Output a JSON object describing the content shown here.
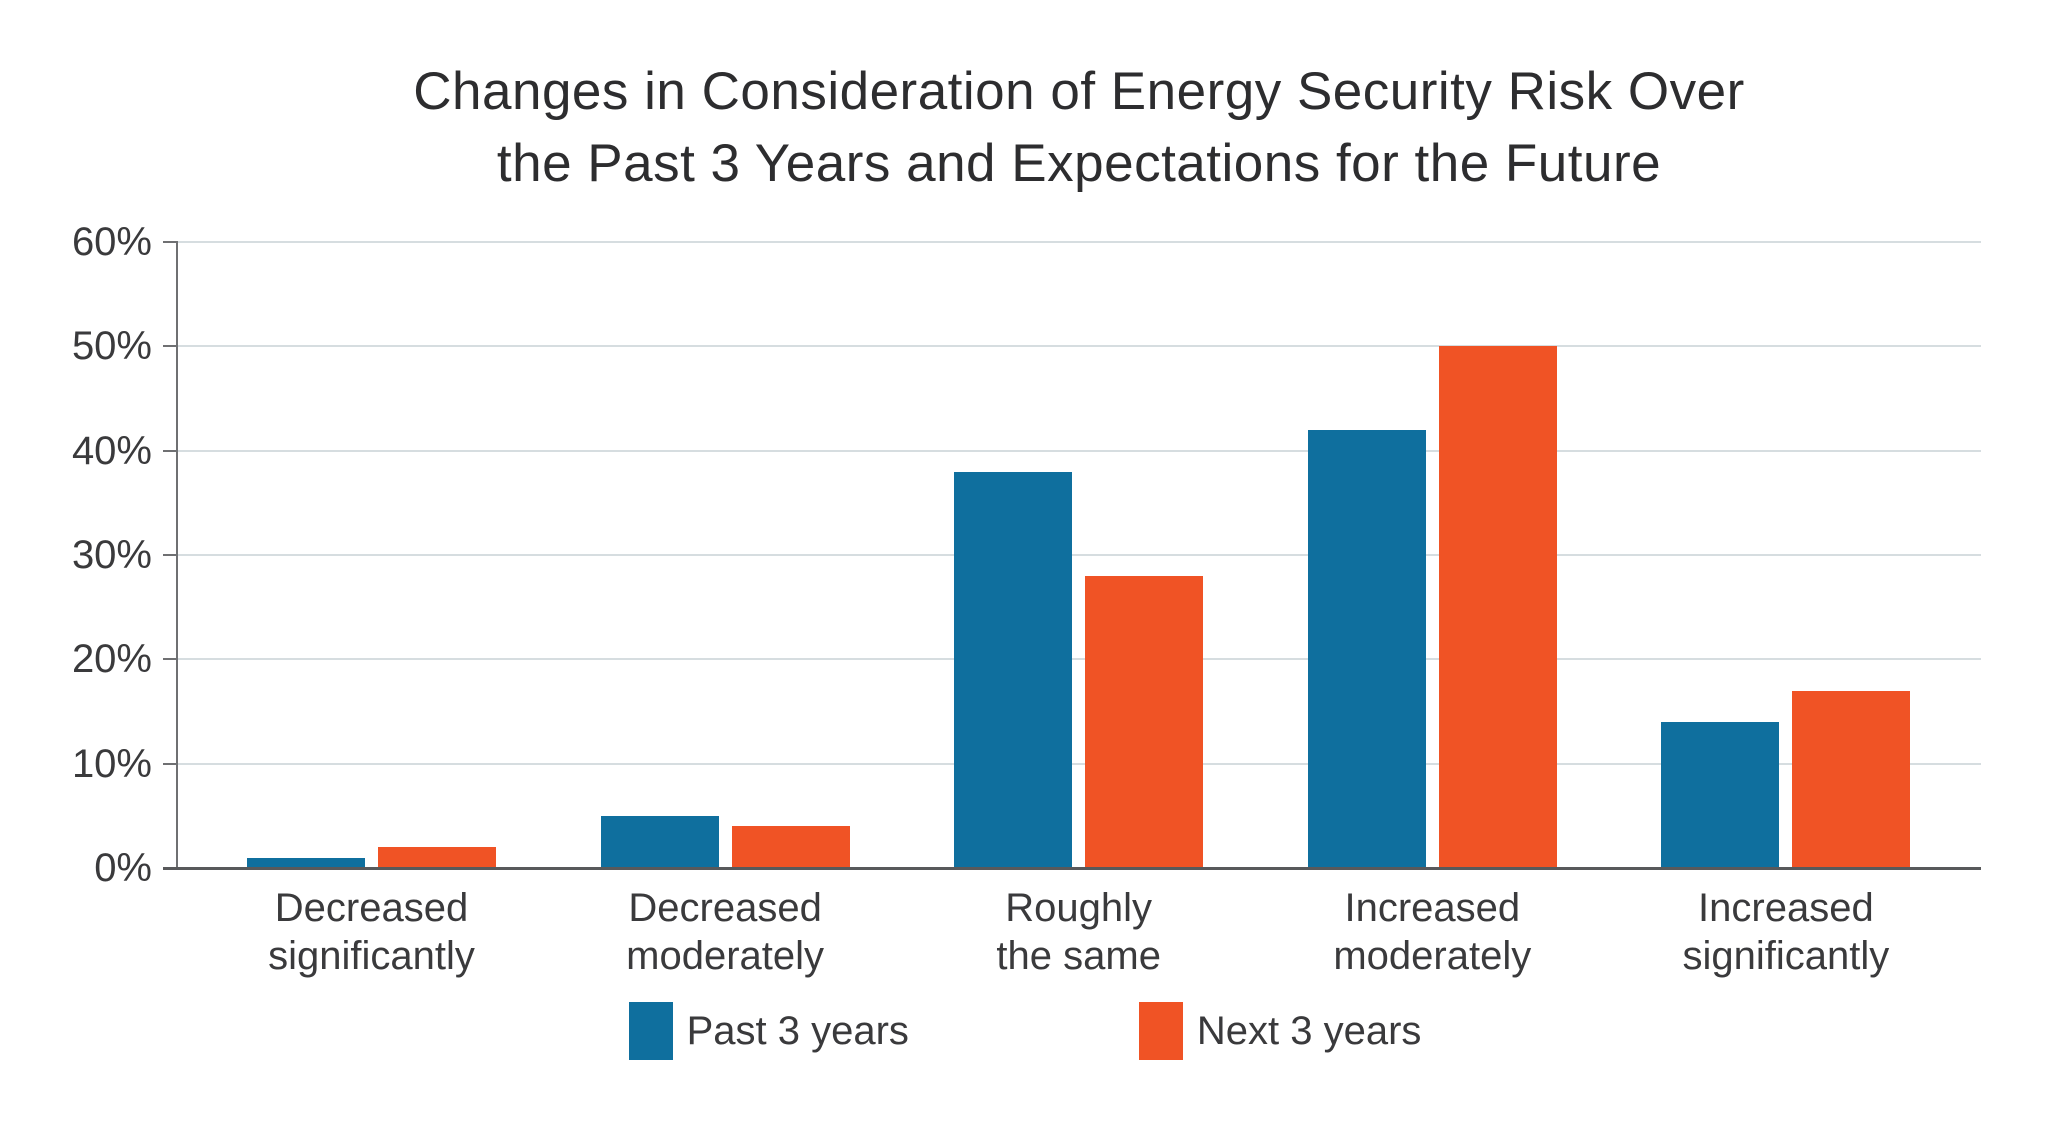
{
  "title": {
    "line1": "Changes in Consideration of Energy Security Risk Over",
    "line2": "the Past 3 Years and Expectations for the Future"
  },
  "chart_data": {
    "type": "bar",
    "title": "Changes in Consideration of Energy Security Risk Over the Past 3 Years and Expectations for the Future",
    "categories": [
      "Decreased significantly",
      "Decreased moderately",
      "Roughly the same",
      "Increased moderately",
      "Increased significantly"
    ],
    "category_lines": [
      [
        "Decreased",
        "significantly"
      ],
      [
        "Decreased",
        "moderately"
      ],
      [
        "Roughly",
        "the same"
      ],
      [
        "Increased",
        "moderately"
      ],
      [
        "Increased",
        "significantly"
      ]
    ],
    "series": [
      {
        "name": "Past 3 years",
        "color": "#0f6f9e",
        "values": [
          1,
          5,
          38,
          42,
          14
        ]
      },
      {
        "name": "Next 3 years",
        "color": "#f05325",
        "values": [
          2,
          4,
          28,
          50,
          17
        ]
      }
    ],
    "xlabel": "",
    "ylabel": "",
    "ylim": [
      0,
      60
    ],
    "y_tick_step": 10,
    "y_tick_labels": [
      "0%",
      "10%",
      "20%",
      "30%",
      "40%",
      "50%",
      "60%"
    ],
    "grid": true,
    "legend_position": "bottom"
  },
  "colors": {
    "past_series": "#0f6f9e",
    "next_series": "#f05325",
    "gridline": "#d6dde0",
    "y_axis_line": "#6f7072",
    "x_baseline": "#58595b",
    "axis_text": "#3a3a3c",
    "title_text": "#2d2d2f",
    "background": "#ffffff"
  }
}
